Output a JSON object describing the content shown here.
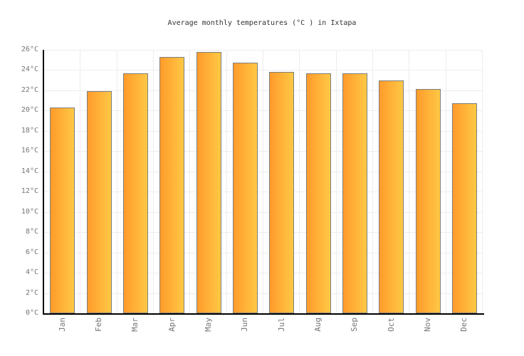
{
  "page": {
    "background": "#FFFFFF"
  },
  "chart_data": {
    "type": "bar",
    "title": "Average monthly temperatures (°C ) in Ixtapa",
    "categories": [
      "Jan",
      "Feb",
      "Mar",
      "Apr",
      "May",
      "Jun",
      "Jul",
      "Aug",
      "Sep",
      "Oct",
      "Nov",
      "Dec"
    ],
    "values": [
      20.3,
      21.9,
      23.7,
      25.3,
      25.8,
      24.7,
      23.8,
      23.7,
      23.7,
      23.0,
      22.1,
      20.7
    ],
    "unit": "°C",
    "xlabel": "",
    "ylabel": "",
    "ylim": [
      0,
      26
    ],
    "ytick_step": 2,
    "ytick_suffix": "°C",
    "grid": true,
    "legend": false
  },
  "colors": {
    "background": "#FFFFFF",
    "bar_gradient_left": "#FF9B2B",
    "bar_gradient_right": "#FFC845",
    "bar_border": "#7E7E7E",
    "gridline": "#EDEDED",
    "axis_line": "#000000",
    "tick_label": "#757575",
    "title_text": "#333333"
  }
}
